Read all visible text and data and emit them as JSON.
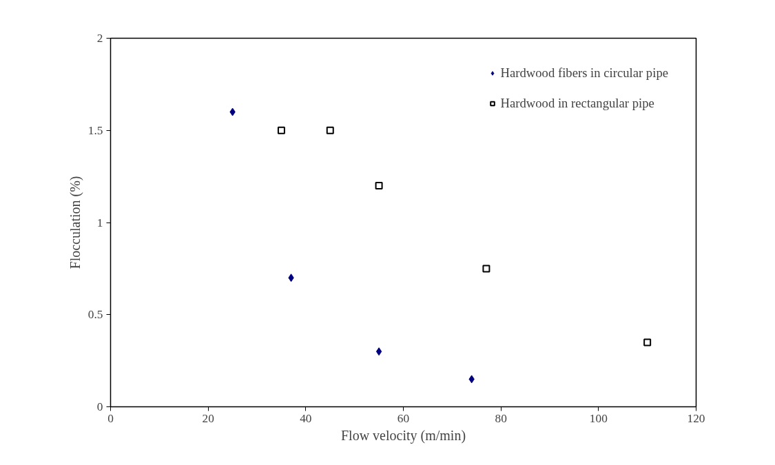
{
  "chart_data": {
    "type": "scatter",
    "xlabel": "Flow velocity (m/min)",
    "ylabel": "Flocculation (%)",
    "xlim": [
      0,
      120
    ],
    "xticks": [
      0,
      20,
      40,
      60,
      80,
      100,
      120
    ],
    "ylim": [
      0,
      2
    ],
    "yticks": [
      0,
      0.5,
      1,
      1.5,
      2
    ],
    "grid": false,
    "legend": "top right",
    "series": [
      {
        "name": "Hardwood fibers in circular pipe",
        "color": "#000080",
        "marker": "diamond",
        "x": [
          25,
          37,
          55,
          74
        ],
        "values": [
          1.6,
          0.7,
          0.3,
          0.15
        ]
      },
      {
        "name": "Hardwood in rectangular pipe",
        "color": "#000000",
        "marker": "square",
        "x": [
          35,
          45,
          55,
          77,
          110
        ],
        "values": [
          1.5,
          1.5,
          1.2,
          0.75,
          0.35
        ]
      }
    ]
  }
}
